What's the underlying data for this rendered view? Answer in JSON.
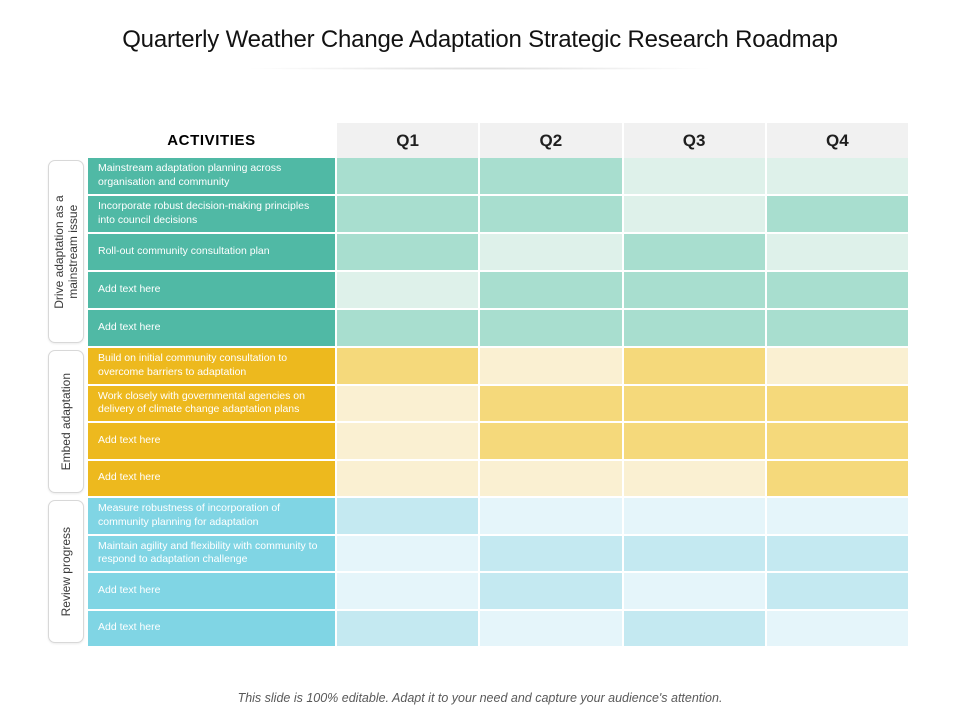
{
  "title": "Quarterly Weather Change Adaptation Strategic Research Roadmap",
  "table": {
    "activities_header": "ACTIVITIES",
    "quarters": [
      "Q1",
      "Q2",
      "Q3",
      "Q4"
    ],
    "header_bg": "#f1f1f1",
    "sections": [
      {
        "name": "Drive adaptation as a mainstream issue",
        "colors": {
          "label_bg": "#50b9a5",
          "cell_medium": "#a8decf",
          "cell_light": "#def1ea"
        },
        "rows": [
          {
            "label": "Mainstream adaptation planning across organisation and community",
            "cells": [
              "medium",
              "medium",
              "light",
              "light"
            ]
          },
          {
            "label": "Incorporate robust decision-making principles into council decisions",
            "cells": [
              "medium",
              "medium",
              "light",
              "medium"
            ]
          },
          {
            "label": "Roll-out community consultation plan",
            "cells": [
              "medium",
              "light",
              "medium",
              "light"
            ]
          },
          {
            "label": "Add text here",
            "cells": [
              "light",
              "medium",
              "medium",
              "medium"
            ]
          },
          {
            "label": "Add text here",
            "cells": [
              "medium",
              "medium",
              "medium",
              "medium"
            ]
          }
        ]
      },
      {
        "name": "Embed adaptation",
        "colors": {
          "label_bg": "#edb91e",
          "cell_medium": "#f5d97b",
          "cell_light": "#faf0d2"
        },
        "rows": [
          {
            "label": "Build on initial community consultation to overcome barriers to adaptation",
            "cells": [
              "medium",
              "light",
              "medium",
              "light"
            ]
          },
          {
            "label": "Work closely with governmental agencies on delivery of climate change adaptation plans",
            "cells": [
              "light",
              "medium",
              "medium",
              "medium"
            ]
          },
          {
            "label": "Add text here",
            "cells": [
              "light",
              "medium",
              "medium",
              "medium"
            ]
          },
          {
            "label": "Add text here",
            "cells": [
              "light",
              "light",
              "light",
              "medium"
            ]
          }
        ]
      },
      {
        "name": "Review progress",
        "colors": {
          "label_bg": "#80d5e4",
          "cell_medium": "#c4e9f1",
          "cell_light": "#e5f5fa"
        },
        "rows": [
          {
            "label": "Measure robustness of incorporation of community planning for adaptation",
            "cells": [
              "medium",
              "light",
              "light",
              "light"
            ]
          },
          {
            "label": "Maintain agility and flexibility with community to respond to adaptation challenge",
            "cells": [
              "light",
              "medium",
              "medium",
              "medium"
            ]
          },
          {
            "label": "Add text here",
            "cells": [
              "light",
              "medium",
              "light",
              "medium"
            ]
          },
          {
            "label": "Add text here",
            "cells": [
              "medium",
              "light",
              "medium",
              "light"
            ]
          }
        ]
      }
    ]
  },
  "footer": "This slide is 100% editable. Adapt it to your need and capture your audience's attention."
}
